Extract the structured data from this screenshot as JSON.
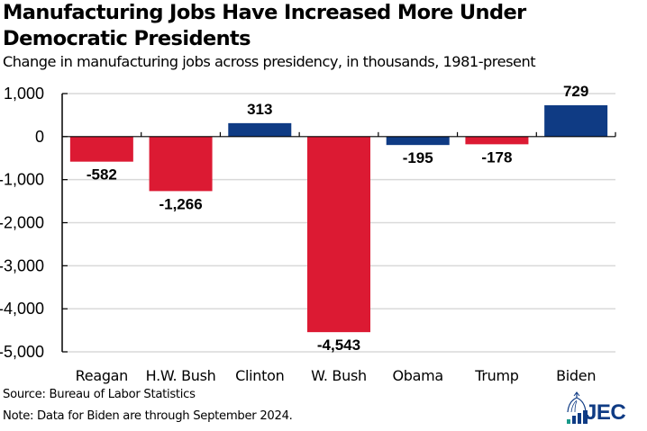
{
  "title": "Manufacturing Jobs Have Increased More Under Democratic Presidents",
  "subtitle": "Change in manufacturing jobs across presidency, in thousands, 1981-present",
  "source": "Source: Bureau of Labor Statistics",
  "note": "Note: Data for Biden are through September 2024.",
  "logo": {
    "text": "JEC",
    "icon": "capitol-dome-bar-chart-icon"
  },
  "colors": {
    "republican": "#dc1a33",
    "democrat": "#0f3b84",
    "gridline": "#d9d9d9",
    "axis": "#000000"
  },
  "chart_data": {
    "type": "bar",
    "title": "Manufacturing Jobs Have Increased More Under Democratic Presidents",
    "subtitle": "Change in manufacturing jobs across presidency, in thousands, 1981-present",
    "xlabel": "",
    "ylabel": "",
    "categories": [
      "Reagan",
      "H.W. Bush",
      "Clinton",
      "W. Bush",
      "Obama",
      "Trump",
      "Biden"
    ],
    "values": [
      -582,
      -1266,
      313,
      -4543,
      -195,
      -178,
      729
    ],
    "data_labels": [
      "-582",
      "-1,266",
      "313",
      "-4,543",
      "-195",
      "-178",
      "729"
    ],
    "party": [
      "R",
      "R",
      "D",
      "R",
      "D",
      "R",
      "D"
    ],
    "ylim": [
      -5000,
      1000
    ],
    "yticks": [
      1000,
      0,
      -1000,
      -2000,
      -3000,
      -4000,
      -5000
    ],
    "ytick_labels": [
      "1,000",
      "0",
      "-1,000",
      "-2,000",
      "-3,000",
      "-4,000",
      "-5,000"
    ],
    "grid": true,
    "legend": "none"
  }
}
